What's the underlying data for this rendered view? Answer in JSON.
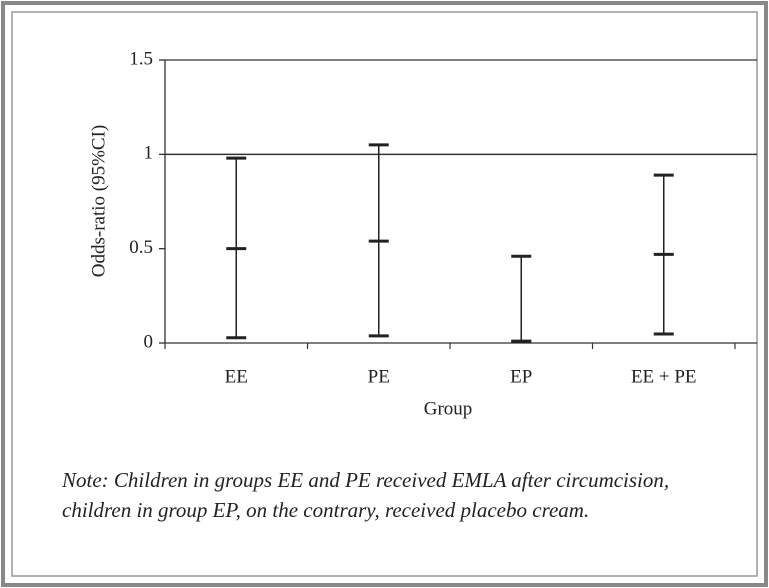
{
  "chart_data": {
    "type": "errorbar",
    "y_label": "Odds-ratio (95%CI)",
    "x_label": "Group",
    "categories": [
      "EE",
      "PE",
      "EP",
      "EE + PE"
    ],
    "values": [
      0.5,
      0.54,
      0.01,
      0.47
    ],
    "lower": [
      0.02,
      0.03,
      0.0,
      0.04
    ],
    "upper": [
      0.98,
      1.05,
      0.46,
      0.89
    ],
    "color": "#222222",
    "reference_line": 1,
    "ylim": [
      0,
      1.5
    ],
    "yticks": [
      0,
      0.5,
      1,
      1.5
    ]
  },
  "note": "Note: Children in groups EE and PE received EMLA after circumcision, children in group EP, on the contrary, received placebo cream."
}
